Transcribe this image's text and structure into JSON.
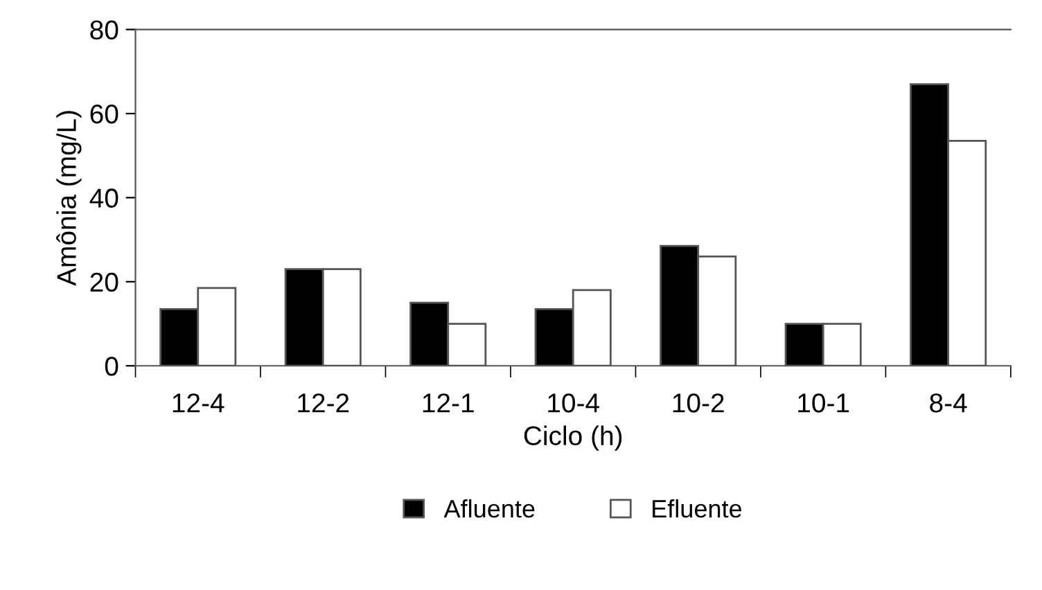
{
  "chart_data": {
    "type": "bar",
    "xlabel": "Ciclo (h)",
    "ylabel": "Amônia (mg/L)",
    "categories": [
      "12-4",
      "12-2",
      "12-1",
      "10-4",
      "10-2",
      "10-1",
      "8-4"
    ],
    "series": [
      {
        "name": "Afluente",
        "color": "#000000",
        "values": [
          13.5,
          23,
          15,
          13.5,
          28.5,
          10,
          67
        ]
      },
      {
        "name": "Efluente",
        "color": "#ffffff",
        "values": [
          18.5,
          23,
          10,
          18,
          26,
          10,
          53.5
        ]
      }
    ],
    "ylim": [
      0,
      80
    ],
    "yticks": [
      0,
      20,
      40,
      60,
      80
    ],
    "grid": false,
    "legend": "bottom"
  }
}
